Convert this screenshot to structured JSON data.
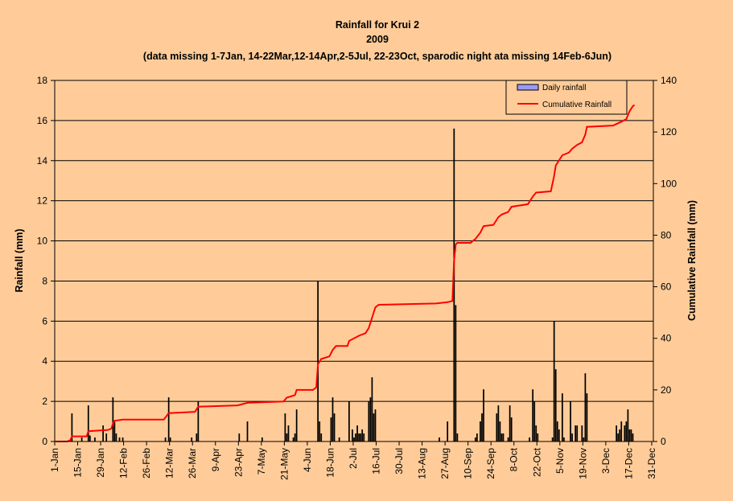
{
  "chart_data": {
    "type": "bar+line",
    "title_lines": [
      "Rainfall for Krui 2",
      "2009",
      "(data missing 1-7Jan, 14-22Mar,12-14Apr,2-5Jul, 22-23Oct, sparodic night ata missing 14Feb-6Jun)"
    ],
    "ylabel_left": "Rainfall (mm)",
    "ylabel_right": "Cumulative Rainfall (mm)",
    "ylim_left": [
      0,
      18
    ],
    "ylim_right": [
      0,
      140
    ],
    "yticks_left": [
      "0",
      "2",
      "4",
      "6",
      "8",
      "10",
      "12",
      "14",
      "16",
      "18"
    ],
    "yticks_right": [
      "0",
      "20",
      "40",
      "60",
      "80",
      "100",
      "120",
      "140"
    ],
    "xtick_labels": [
      "1-Jan",
      "15-Jan",
      "29-Jan",
      "12-Feb",
      "26-Feb",
      "12-Mar",
      "26-Mar",
      "9-Apr",
      "23-Apr",
      "7-May",
      "21-May",
      "4-Jun",
      "18-Jun",
      "2-Jul",
      "16-Jul",
      "30-Jul",
      "13-Aug",
      "27-Aug",
      "10-Sep",
      "24-Sep",
      "8-Oct",
      "22-Oct",
      "5-Nov",
      "19-Nov",
      "3-Dec",
      "17-Dec",
      "31-Dec"
    ],
    "legend": [
      {
        "name": "Daily rainfall",
        "kind": "bar",
        "color": "#9999FF"
      },
      {
        "name": "Cumulative Rainfall",
        "kind": "line",
        "color": "#FF0000"
      }
    ],
    "legend_position": "top-right",
    "grid": "horizontal",
    "bar_color": "#000000",
    "line_color": "#FF0000",
    "daily_rainfall": [
      {
        "day": 11,
        "value": 1.4
      },
      {
        "day": 17,
        "value": 0.2
      },
      {
        "day": 21,
        "value": 1.8
      },
      {
        "day": 22,
        "value": 0.3
      },
      {
        "day": 25,
        "value": 0.2
      },
      {
        "day": 30,
        "value": 0.8
      },
      {
        "day": 32,
        "value": 0.4
      },
      {
        "day": 36,
        "value": 2.2
      },
      {
        "day": 37,
        "value": 1.0
      },
      {
        "day": 38,
        "value": 0.4
      },
      {
        "day": 40,
        "value": 0.2
      },
      {
        "day": 42,
        "value": 0.2
      },
      {
        "day": 68,
        "value": 0.2
      },
      {
        "day": 70,
        "value": 2.2
      },
      {
        "day": 71,
        "value": 0.2
      },
      {
        "day": 84,
        "value": 0.2
      },
      {
        "day": 87,
        "value": 0.4
      },
      {
        "day": 88,
        "value": 2.0
      },
      {
        "day": 113,
        "value": 0.4
      },
      {
        "day": 118,
        "value": 1.0
      },
      {
        "day": 127,
        "value": 0.2
      },
      {
        "day": 141,
        "value": 1.4
      },
      {
        "day": 142,
        "value": 0.4
      },
      {
        "day": 143,
        "value": 0.8
      },
      {
        "day": 146,
        "value": 0.2
      },
      {
        "day": 147,
        "value": 0.4
      },
      {
        "day": 148,
        "value": 1.6
      },
      {
        "day": 161,
        "value": 8.0
      },
      {
        "day": 162,
        "value": 1.0
      },
      {
        "day": 163,
        "value": 0.4
      },
      {
        "day": 169,
        "value": 1.2
      },
      {
        "day": 170,
        "value": 2.2
      },
      {
        "day": 171,
        "value": 1.4
      },
      {
        "day": 174,
        "value": 0.2
      },
      {
        "day": 180,
        "value": 2.0
      },
      {
        "day": 182,
        "value": 0.6
      },
      {
        "day": 183,
        "value": 0.2
      },
      {
        "day": 184,
        "value": 0.4
      },
      {
        "day": 185,
        "value": 0.8
      },
      {
        "day": 186,
        "value": 0.4
      },
      {
        "day": 187,
        "value": 0.4
      },
      {
        "day": 188,
        "value": 0.6
      },
      {
        "day": 189,
        "value": 0.4
      },
      {
        "day": 192,
        "value": 2.0
      },
      {
        "day": 193,
        "value": 2.2
      },
      {
        "day": 194,
        "value": 3.2
      },
      {
        "day": 195,
        "value": 1.4
      },
      {
        "day": 196,
        "value": 1.6
      },
      {
        "day": 235,
        "value": 0.2
      },
      {
        "day": 240,
        "value": 1.0
      },
      {
        "day": 244,
        "value": 15.6
      },
      {
        "day": 245,
        "value": 6.8
      },
      {
        "day": 246,
        "value": 0.4
      },
      {
        "day": 257,
        "value": 0.2
      },
      {
        "day": 258,
        "value": 0.4
      },
      {
        "day": 260,
        "value": 1.0
      },
      {
        "day": 261,
        "value": 1.4
      },
      {
        "day": 262,
        "value": 2.6
      },
      {
        "day": 270,
        "value": 1.4
      },
      {
        "day": 271,
        "value": 1.8
      },
      {
        "day": 272,
        "value": 1.0
      },
      {
        "day": 273,
        "value": 0.4
      },
      {
        "day": 274,
        "value": 0.4
      },
      {
        "day": 277,
        "value": 0.2
      },
      {
        "day": 278,
        "value": 1.8
      },
      {
        "day": 279,
        "value": 1.2
      },
      {
        "day": 290,
        "value": 0.2
      },
      {
        "day": 292,
        "value": 2.6
      },
      {
        "day": 293,
        "value": 2.0
      },
      {
        "day": 294,
        "value": 0.8
      },
      {
        "day": 295,
        "value": 0.4
      },
      {
        "day": 304,
        "value": 0.2
      },
      {
        "day": 305,
        "value": 6.0
      },
      {
        "day": 306,
        "value": 3.6
      },
      {
        "day": 307,
        "value": 1.0
      },
      {
        "day": 308,
        "value": 0.6
      },
      {
        "day": 310,
        "value": 2.4
      },
      {
        "day": 311,
        "value": 0.2
      },
      {
        "day": 315,
        "value": 2.0
      },
      {
        "day": 316,
        "value": 0.4
      },
      {
        "day": 318,
        "value": 0.8
      },
      {
        "day": 319,
        "value": 0.8
      },
      {
        "day": 322,
        "value": 0.8
      },
      {
        "day": 323,
        "value": 0.2
      },
      {
        "day": 324,
        "value": 3.4
      },
      {
        "day": 325,
        "value": 2.4
      },
      {
        "day": 343,
        "value": 0.8
      },
      {
        "day": 344,
        "value": 0.4
      },
      {
        "day": 345,
        "value": 0.6
      },
      {
        "day": 346,
        "value": 1.0
      },
      {
        "day": 348,
        "value": 0.8
      },
      {
        "day": 349,
        "value": 1.0
      },
      {
        "day": 350,
        "value": 1.6
      },
      {
        "day": 351,
        "value": 0.6
      },
      {
        "day": 352,
        "value": 0.6
      },
      {
        "day": 353,
        "value": 0.4
      }
    ],
    "cumulative_rainfall": [
      {
        "day": 1,
        "value": 0
      },
      {
        "day": 8,
        "value": 0
      },
      {
        "day": 10,
        "value": 0.5
      },
      {
        "day": 11,
        "value": 2
      },
      {
        "day": 20,
        "value": 2
      },
      {
        "day": 21,
        "value": 4
      },
      {
        "day": 33,
        "value": 4.5
      },
      {
        "day": 35,
        "value": 5
      },
      {
        "day": 36,
        "value": 7
      },
      {
        "day": 37,
        "value": 8
      },
      {
        "day": 42,
        "value": 8.5
      },
      {
        "day": 67,
        "value": 8.5
      },
      {
        "day": 70,
        "value": 11
      },
      {
        "day": 86,
        "value": 11.5
      },
      {
        "day": 88,
        "value": 13.5
      },
      {
        "day": 112,
        "value": 14
      },
      {
        "day": 118,
        "value": 15
      },
      {
        "day": 140,
        "value": 15.5
      },
      {
        "day": 142,
        "value": 17
      },
      {
        "day": 147,
        "value": 18
      },
      {
        "day": 148,
        "value": 20
      },
      {
        "day": 158,
        "value": 20
      },
      {
        "day": 160,
        "value": 21
      },
      {
        "day": 161,
        "value": 30
      },
      {
        "day": 163,
        "value": 32
      },
      {
        "day": 168,
        "value": 33
      },
      {
        "day": 170,
        "value": 35.5
      },
      {
        "day": 172,
        "value": 37
      },
      {
        "day": 179,
        "value": 37
      },
      {
        "day": 180,
        "value": 39
      },
      {
        "day": 186,
        "value": 41
      },
      {
        "day": 190,
        "value": 42
      },
      {
        "day": 192,
        "value": 44
      },
      {
        "day": 194,
        "value": 48
      },
      {
        "day": 196,
        "value": 52
      },
      {
        "day": 198,
        "value": 53
      },
      {
        "day": 233,
        "value": 53.5
      },
      {
        "day": 240,
        "value": 54
      },
      {
        "day": 243,
        "value": 54.5
      },
      {
        "day": 244,
        "value": 70
      },
      {
        "day": 245,
        "value": 76.5
      },
      {
        "day": 246,
        "value": 77
      },
      {
        "day": 254,
        "value": 77
      },
      {
        "day": 257,
        "value": 78.5
      },
      {
        "day": 260,
        "value": 81
      },
      {
        "day": 262,
        "value": 83.5
      },
      {
        "day": 268,
        "value": 84
      },
      {
        "day": 271,
        "value": 87
      },
      {
        "day": 273,
        "value": 88
      },
      {
        "day": 277,
        "value": 89
      },
      {
        "day": 279,
        "value": 91
      },
      {
        "day": 289,
        "value": 92
      },
      {
        "day": 292,
        "value": 95
      },
      {
        "day": 294,
        "value": 96.5
      },
      {
        "day": 303,
        "value": 97
      },
      {
        "day": 305,
        "value": 103
      },
      {
        "day": 306,
        "value": 107
      },
      {
        "day": 308,
        "value": 109
      },
      {
        "day": 310,
        "value": 111
      },
      {
        "day": 314,
        "value": 112
      },
      {
        "day": 316,
        "value": 113.5
      },
      {
        "day": 319,
        "value": 115
      },
      {
        "day": 322,
        "value": 116
      },
      {
        "day": 324,
        "value": 119
      },
      {
        "day": 325,
        "value": 122
      },
      {
        "day": 341,
        "value": 122.5
      },
      {
        "day": 346,
        "value": 124
      },
      {
        "day": 349,
        "value": 125
      },
      {
        "day": 351,
        "value": 128
      },
      {
        "day": 353,
        "value": 130
      },
      {
        "day": 354,
        "value": 130.5
      }
    ]
  }
}
